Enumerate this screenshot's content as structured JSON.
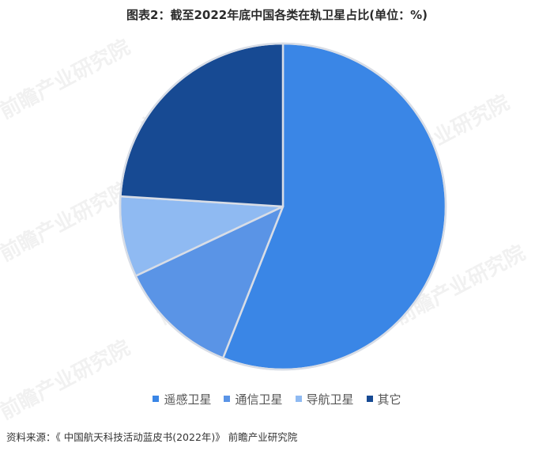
{
  "title": "图表2：截至2022年底中国各类在轨卫星占比(单位：%)",
  "source": "资料来源：《 中国航天科技活动蓝皮书(2022年)》 前瞻产业研究院",
  "watermark": "前瞻产业研究院",
  "chart_data": {
    "type": "pie",
    "title": "图表2：截至2022年底中国各类在轨卫星占比(单位：%)",
    "unit": "%",
    "legend_position": "bottom",
    "slices": [
      {
        "label": "遥感卫星",
        "value": 56,
        "color": "#3a86e6"
      },
      {
        "label": "通信卫星",
        "value": 12,
        "color": "#5a94e6"
      },
      {
        "label": "导航卫星",
        "value": 8,
        "color": "#8fbaf2"
      },
      {
        "label": "其它",
        "value": 24,
        "color": "#174a93"
      }
    ]
  }
}
